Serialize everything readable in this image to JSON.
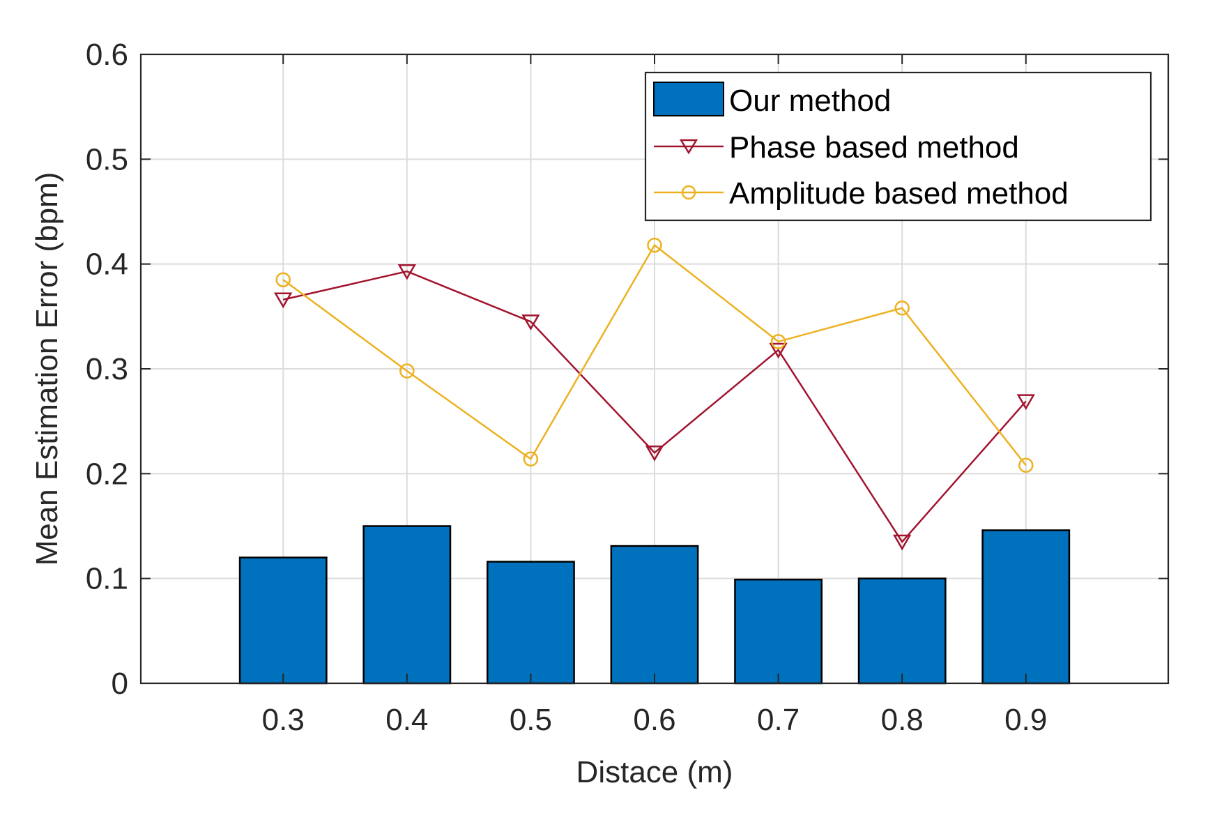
{
  "chart_data": {
    "type": "bar",
    "title": "",
    "xlabel": "Distace (m)",
    "ylabel": "Mean Estimation Error (bpm)",
    "categories": [
      "0.3",
      "0.4",
      "0.5",
      "0.6",
      "0.7",
      "0.8",
      "0.9"
    ],
    "x": [
      0.3,
      0.4,
      0.5,
      0.6,
      0.7,
      0.8,
      0.9
    ],
    "xlim": [
      0.185,
      1.015
    ],
    "ylim": [
      0,
      0.6
    ],
    "yticks": [
      0,
      0.1,
      0.2,
      0.3,
      0.4,
      0.5,
      0.6
    ],
    "ytick_labels": [
      "0",
      "0.1",
      "0.2",
      "0.3",
      "0.4",
      "0.5",
      "0.6"
    ],
    "grid": true,
    "legend_position": "top-right",
    "series": [
      {
        "name": "Our method",
        "kind": "bar",
        "color": "#0072BD",
        "values": [
          0.12,
          0.15,
          0.116,
          0.131,
          0.099,
          0.1,
          0.146
        ]
      },
      {
        "name": "Phase based method",
        "kind": "line",
        "marker": "triangle-down",
        "color": "#A2142F",
        "values": [
          0.366,
          0.393,
          0.345,
          0.22,
          0.318,
          0.135,
          0.269
        ]
      },
      {
        "name": "Amplitude based method",
        "kind": "line",
        "marker": "circle",
        "color": "#EDB120",
        "values": [
          0.385,
          0.298,
          0.214,
          0.418,
          0.326,
          0.358,
          0.208
        ]
      }
    ]
  }
}
